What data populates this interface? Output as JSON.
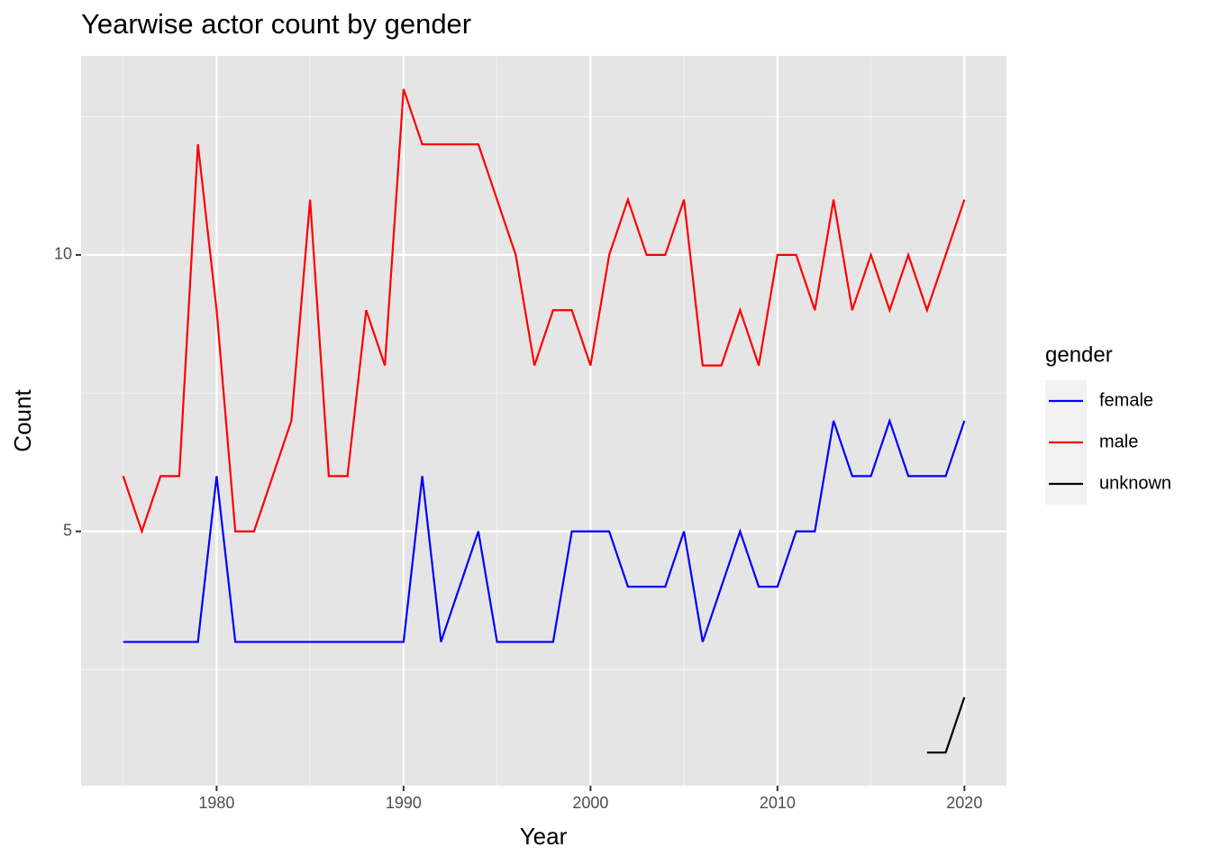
{
  "chart_data": {
    "type": "line",
    "title": "Yearwise actor count by gender",
    "x_label": "Year",
    "y_label": "Count",
    "legend_title": "gender",
    "legend_position": "right",
    "grid": true,
    "x": [
      1975,
      1976,
      1977,
      1978,
      1979,
      1980,
      1981,
      1982,
      1983,
      1984,
      1985,
      1986,
      1987,
      1988,
      1989,
      1990,
      1991,
      1992,
      1993,
      1994,
      1995,
      1996,
      1997,
      1998,
      1999,
      2000,
      2001,
      2002,
      2003,
      2004,
      2005,
      2006,
      2007,
      2008,
      2009,
      2010,
      2011,
      2012,
      2013,
      2014,
      2015,
      2016,
      2017,
      2018,
      2019,
      2020
    ],
    "series": [
      {
        "name": "female",
        "color": "#0000ff",
        "values": [
          3,
          3,
          3,
          3,
          3,
          6,
          3,
          3,
          3,
          3,
          3,
          3,
          3,
          3,
          3,
          3,
          6,
          3,
          4,
          5,
          3,
          3,
          3,
          3,
          5,
          5,
          5,
          4,
          4,
          4,
          5,
          3,
          4,
          5,
          4,
          4,
          5,
          5,
          7,
          6,
          6,
          7,
          6,
          6,
          6,
          7
        ]
      },
      {
        "name": "male",
        "color": "#ff0000",
        "values": [
          6,
          5,
          6,
          6,
          12,
          9,
          5,
          5,
          6,
          7,
          11,
          6,
          6,
          9,
          8,
          13,
          12,
          12,
          12,
          12,
          11,
          10,
          8,
          9,
          9,
          8,
          10,
          11,
          10,
          10,
          11,
          8,
          8,
          9,
          8,
          10,
          10,
          9,
          11,
          9,
          10,
          9,
          10,
          9,
          10,
          11
        ]
      },
      {
        "name": "unknown",
        "color": "#000000",
        "values": [
          null,
          null,
          null,
          null,
          null,
          null,
          null,
          null,
          null,
          null,
          null,
          null,
          null,
          null,
          null,
          null,
          null,
          null,
          null,
          null,
          null,
          null,
          null,
          null,
          null,
          null,
          null,
          null,
          null,
          null,
          null,
          null,
          null,
          null,
          null,
          null,
          null,
          null,
          null,
          null,
          null,
          null,
          null,
          1,
          1,
          2
        ]
      }
    ],
    "xlim": [
      1972.75,
      2022.25
    ],
    "xticks": [
      1980,
      1990,
      2000,
      2010,
      2020
    ],
    "x_minor_ticks": [
      1975,
      1985,
      1995,
      2005,
      2015
    ],
    "ylim": [
      0.4,
      13.6
    ],
    "yticks": [
      5,
      10
    ],
    "y_minor_ticks": [
      2.5,
      7.5,
      12.5
    ]
  }
}
